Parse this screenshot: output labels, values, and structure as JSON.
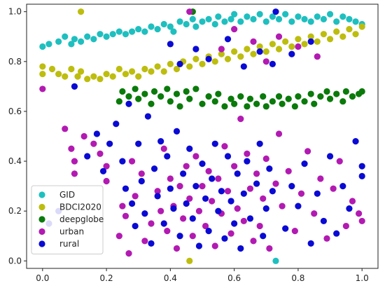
{
  "chart_data": {
    "type": "scatter",
    "title": "",
    "xlabel": "",
    "ylabel": "",
    "xlim": [
      -0.05,
      1.05
    ],
    "ylim": [
      -0.03,
      1.03
    ],
    "xticks": [
      "0.0",
      "0.2",
      "0.4",
      "0.6",
      "0.8",
      "1.0"
    ],
    "xtick_values": [
      0.0,
      0.2,
      0.4,
      0.6,
      0.8,
      1.0
    ],
    "yticks": [
      "0.0",
      "0.2",
      "0.4",
      "0.6",
      "0.8",
      "1.0"
    ],
    "ytick_values": [
      0.0,
      0.2,
      0.4,
      0.6,
      0.8,
      1.0
    ],
    "grid": false,
    "legend_position": "bottom-left",
    "series": [
      {
        "name": "GID",
        "color": "#1fbfbf",
        "points": [
          [
            0.0,
            0.86
          ],
          [
            0.02,
            0.87
          ],
          [
            0.05,
            0.88
          ],
          [
            0.07,
            0.9
          ],
          [
            0.09,
            0.87
          ],
          [
            0.1,
            0.89
          ],
          [
            0.12,
            0.88
          ],
          [
            0.14,
            0.9
          ],
          [
            0.16,
            0.89
          ],
          [
            0.18,
            0.91
          ],
          [
            0.2,
            0.9
          ],
          [
            0.22,
            0.91
          ],
          [
            0.24,
            0.92
          ],
          [
            0.26,
            0.91
          ],
          [
            0.28,
            0.92
          ],
          [
            0.3,
            0.93
          ],
          [
            0.32,
            0.92
          ],
          [
            0.34,
            0.94
          ],
          [
            0.36,
            0.93
          ],
          [
            0.38,
            0.95
          ],
          [
            0.4,
            0.94
          ],
          [
            0.41,
            0.92
          ],
          [
            0.43,
            0.96
          ],
          [
            0.45,
            0.95
          ],
          [
            0.47,
            0.97
          ],
          [
            0.48,
            0.94
          ],
          [
            0.5,
            0.96
          ],
          [
            0.52,
            0.97
          ],
          [
            0.54,
            0.95
          ],
          [
            0.55,
            0.98
          ],
          [
            0.57,
            0.96
          ],
          [
            0.59,
            0.97
          ],
          [
            0.6,
            0.99
          ],
          [
            0.62,
            0.96
          ],
          [
            0.64,
            0.98
          ],
          [
            0.66,
            0.97
          ],
          [
            0.68,
            0.99
          ],
          [
            0.7,
            0.96
          ],
          [
            0.72,
            0.98
          ],
          [
            0.74,
            0.97
          ],
          [
            0.76,
            0.99
          ],
          [
            0.78,
            0.96
          ],
          [
            0.8,
            0.98
          ],
          [
            0.82,
            0.97
          ],
          [
            0.84,
            0.96
          ],
          [
            0.86,
            0.98
          ],
          [
            0.88,
            0.97
          ],
          [
            0.9,
            0.99
          ],
          [
            0.92,
            0.96
          ],
          [
            0.94,
            0.98
          ],
          [
            0.96,
            0.97
          ],
          [
            0.98,
            0.96
          ],
          [
            1.0,
            0.95
          ],
          [
            0.73,
            0.0
          ]
        ]
      },
      {
        "name": "BDCI2020",
        "color": "#bdbd0f",
        "points": [
          [
            0.0,
            0.78
          ],
          [
            0.0,
            0.75
          ],
          [
            0.03,
            0.77
          ],
          [
            0.05,
            0.75
          ],
          [
            0.07,
            0.74
          ],
          [
            0.09,
            0.77
          ],
          [
            0.11,
            0.74
          ],
          [
            0.12,
            0.76
          ],
          [
            0.14,
            0.73
          ],
          [
            0.16,
            0.74
          ],
          [
            0.18,
            0.73
          ],
          [
            0.2,
            0.75
          ],
          [
            0.22,
            0.74
          ],
          [
            0.24,
            0.77
          ],
          [
            0.26,
            0.75
          ],
          [
            0.28,
            0.76
          ],
          [
            0.3,
            0.74
          ],
          [
            0.32,
            0.77
          ],
          [
            0.34,
            0.76
          ],
          [
            0.36,
            0.78
          ],
          [
            0.38,
            0.76
          ],
          [
            0.4,
            0.79
          ],
          [
            0.42,
            0.77
          ],
          [
            0.44,
            0.8
          ],
          [
            0.46,
            0.78
          ],
          [
            0.48,
            0.81
          ],
          [
            0.5,
            0.79
          ],
          [
            0.52,
            0.82
          ],
          [
            0.54,
            0.8
          ],
          [
            0.56,
            0.83
          ],
          [
            0.58,
            0.81
          ],
          [
            0.6,
            0.84
          ],
          [
            0.62,
            0.82
          ],
          [
            0.64,
            0.85
          ],
          [
            0.66,
            0.83
          ],
          [
            0.68,
            0.86
          ],
          [
            0.7,
            0.84
          ],
          [
            0.72,
            0.87
          ],
          [
            0.74,
            0.85
          ],
          [
            0.76,
            0.88
          ],
          [
            0.78,
            0.86
          ],
          [
            0.8,
            0.89
          ],
          [
            0.82,
            0.87
          ],
          [
            0.84,
            0.9
          ],
          [
            0.86,
            0.88
          ],
          [
            0.88,
            0.91
          ],
          [
            0.9,
            0.89
          ],
          [
            0.92,
            0.92
          ],
          [
            0.94,
            0.9
          ],
          [
            0.96,
            0.93
          ],
          [
            0.98,
            0.91
          ],
          [
            1.0,
            0.94
          ],
          [
            0.12,
            1.0
          ],
          [
            0.46,
            0.0
          ]
        ]
      },
      {
        "name": "deepglobe",
        "color": "#0a7a0a",
        "points": [
          [
            0.24,
            0.64
          ],
          [
            0.25,
            0.68
          ],
          [
            0.27,
            0.66
          ],
          [
            0.29,
            0.69
          ],
          [
            0.3,
            0.65
          ],
          [
            0.32,
            0.67
          ],
          [
            0.34,
            0.63
          ],
          [
            0.35,
            0.68
          ],
          [
            0.37,
            0.66
          ],
          [
            0.39,
            0.69
          ],
          [
            0.4,
            0.64
          ],
          [
            0.42,
            0.67
          ],
          [
            0.43,
            0.62
          ],
          [
            0.45,
            0.68
          ],
          [
            0.46,
            0.65
          ],
          [
            0.48,
            0.69
          ],
          [
            0.5,
            0.63
          ],
          [
            0.52,
            0.66
          ],
          [
            0.54,
            0.64
          ],
          [
            0.55,
            0.67
          ],
          [
            0.57,
            0.62
          ],
          [
            0.59,
            0.65
          ],
          [
            0.6,
            0.63
          ],
          [
            0.62,
            0.66
          ],
          [
            0.64,
            0.62
          ],
          [
            0.65,
            0.65
          ],
          [
            0.67,
            0.63
          ],
          [
            0.69,
            0.66
          ],
          [
            0.7,
            0.62
          ],
          [
            0.72,
            0.64
          ],
          [
            0.74,
            0.66
          ],
          [
            0.75,
            0.63
          ],
          [
            0.77,
            0.65
          ],
          [
            0.79,
            0.62
          ],
          [
            0.8,
            0.66
          ],
          [
            0.82,
            0.64
          ],
          [
            0.84,
            0.67
          ],
          [
            0.85,
            0.63
          ],
          [
            0.87,
            0.66
          ],
          [
            0.89,
            0.68
          ],
          [
            0.9,
            0.65
          ],
          [
            0.92,
            0.67
          ],
          [
            0.94,
            0.64
          ],
          [
            0.95,
            0.68
          ],
          [
            0.97,
            0.66
          ],
          [
            0.99,
            0.67
          ],
          [
            1.0,
            0.68
          ],
          [
            0.47,
            1.0
          ]
        ]
      },
      {
        "name": "urban",
        "color": "#b21ab2",
        "points": [
          [
            0.0,
            0.69
          ],
          [
            0.07,
            0.53
          ],
          [
            0.09,
            0.45
          ],
          [
            0.1,
            0.4
          ],
          [
            0.1,
            0.35
          ],
          [
            0.13,
            0.5
          ],
          [
            0.16,
            0.47
          ],
          [
            0.18,
            0.43
          ],
          [
            0.2,
            0.38
          ],
          [
            0.2,
            0.32
          ],
          [
            0.24,
            0.1
          ],
          [
            0.25,
            0.22
          ],
          [
            0.26,
            0.18
          ],
          [
            0.27,
            0.03
          ],
          [
            0.28,
            0.4
          ],
          [
            0.29,
            0.26
          ],
          [
            0.31,
            0.35
          ],
          [
            0.32,
            0.08
          ],
          [
            0.34,
            0.15
          ],
          [
            0.36,
            0.28
          ],
          [
            0.37,
            0.2
          ],
          [
            0.38,
            0.45
          ],
          [
            0.39,
            0.12
          ],
          [
            0.4,
            0.33
          ],
          [
            0.41,
            0.22
          ],
          [
            0.42,
            0.05
          ],
          [
            0.43,
            0.3
          ],
          [
            0.44,
            0.17
          ],
          [
            0.45,
            0.38
          ],
          [
            0.46,
            0.25
          ],
          [
            0.46,
            1.0
          ],
          [
            0.47,
            0.1
          ],
          [
            0.48,
            0.42
          ],
          [
            0.49,
            0.2
          ],
          [
            0.5,
            0.3
          ],
          [
            0.51,
            0.14
          ],
          [
            0.52,
            0.36
          ],
          [
            0.53,
            0.24
          ],
          [
            0.54,
            0.06
          ],
          [
            0.55,
            0.33
          ],
          [
            0.56,
            0.19
          ],
          [
            0.57,
            0.46
          ],
          [
            0.58,
            0.28
          ],
          [
            0.59,
            0.11
          ],
          [
            0.6,
            0.38
          ],
          [
            0.61,
            0.21
          ],
          [
            0.62,
            0.57
          ],
          [
            0.63,
            0.16
          ],
          [
            0.64,
            0.43
          ],
          [
            0.65,
            0.29
          ],
          [
            0.66,
            0.08
          ],
          [
            0.67,
            0.35
          ],
          [
            0.68,
            0.14
          ],
          [
            0.69,
            0.25
          ],
          [
            0.7,
            0.41
          ],
          [
            0.71,
            0.05
          ],
          [
            0.73,
            0.31
          ],
          [
            0.74,
            0.51
          ],
          [
            0.75,
            0.22
          ],
          [
            0.77,
            0.36
          ],
          [
            0.79,
            0.12
          ],
          [
            0.81,
            0.27
          ],
          [
            0.83,
            0.44
          ],
          [
            0.85,
            0.19
          ],
          [
            0.87,
            0.33
          ],
          [
            0.89,
            0.09
          ],
          [
            0.91,
            0.29
          ],
          [
            0.93,
            0.4
          ],
          [
            0.95,
            0.14
          ],
          [
            0.97,
            0.24
          ],
          [
            0.99,
            0.19
          ],
          [
            1.0,
            0.16
          ],
          [
            0.56,
            0.85
          ],
          [
            0.6,
            0.93
          ],
          [
            0.66,
            0.88
          ],
          [
            0.7,
            0.8
          ],
          [
            0.74,
            0.9
          ],
          [
            0.8,
            0.86
          ],
          [
            0.86,
            0.82
          ]
        ]
      },
      {
        "name": "rural",
        "color": "#0a0ad4",
        "points": [
          [
            0.02,
            0.15
          ],
          [
            0.05,
            0.2
          ],
          [
            0.1,
            0.7
          ],
          [
            0.14,
            0.42
          ],
          [
            0.17,
            0.51
          ],
          [
            0.19,
            0.36
          ],
          [
            0.21,
            0.47
          ],
          [
            0.23,
            0.55
          ],
          [
            0.25,
            0.4
          ],
          [
            0.26,
            0.29
          ],
          [
            0.27,
            0.63
          ],
          [
            0.28,
            0.23
          ],
          [
            0.29,
            0.14
          ],
          [
            0.3,
            0.47
          ],
          [
            0.31,
            0.32
          ],
          [
            0.32,
            0.19
          ],
          [
            0.33,
            0.58
          ],
          [
            0.34,
            0.07
          ],
          [
            0.35,
            0.37
          ],
          [
            0.36,
            0.26
          ],
          [
            0.37,
            0.48
          ],
          [
            0.38,
            0.15
          ],
          [
            0.39,
            0.42
          ],
          [
            0.4,
            0.29
          ],
          [
            0.4,
            0.87
          ],
          [
            0.41,
            0.21
          ],
          [
            0.42,
            0.52
          ],
          [
            0.43,
            0.1
          ],
          [
            0.44,
            0.35
          ],
          [
            0.45,
            0.23
          ],
          [
            0.46,
            0.45
          ],
          [
            0.47,
            0.17
          ],
          [
            0.48,
            0.3
          ],
          [
            0.49,
            0.06
          ],
          [
            0.5,
            0.39
          ],
          [
            0.51,
            0.25
          ],
          [
            0.52,
            0.12
          ],
          [
            0.53,
            0.33
          ],
          [
            0.54,
            0.47
          ],
          [
            0.55,
            0.2
          ],
          [
            0.56,
            0.28
          ],
          [
            0.57,
            0.09
          ],
          [
            0.58,
            0.42
          ],
          [
            0.59,
            0.24
          ],
          [
            0.6,
            0.15
          ],
          [
            0.61,
            0.35
          ],
          [
            0.62,
            0.05
          ],
          [
            0.63,
            0.27
          ],
          [
            0.64,
            0.4
          ],
          [
            0.65,
            0.17
          ],
          [
            0.67,
            0.31
          ],
          [
            0.68,
            0.47
          ],
          [
            0.69,
            0.1
          ],
          [
            0.7,
            0.21
          ],
          [
            0.71,
            0.37
          ],
          [
            0.72,
            0.28
          ],
          [
            0.73,
            1.0
          ],
          [
            0.76,
            0.13
          ],
          [
            0.78,
            0.3
          ],
          [
            0.8,
            0.22
          ],
          [
            0.82,
            0.39
          ],
          [
            0.84,
            0.07
          ],
          [
            0.86,
            0.27
          ],
          [
            0.88,
            0.16
          ],
          [
            0.9,
            0.42
          ],
          [
            0.92,
            0.11
          ],
          [
            0.94,
            0.3
          ],
          [
            0.96,
            0.21
          ],
          [
            0.98,
            0.48
          ],
          [
            1.0,
            0.38
          ],
          [
            1.0,
            0.34
          ],
          [
            0.43,
            0.79
          ],
          [
            0.48,
            0.85
          ],
          [
            0.52,
            0.81
          ],
          [
            0.58,
            0.89
          ],
          [
            0.63,
            0.78
          ],
          [
            0.68,
            0.84
          ],
          [
            0.72,
            0.79
          ],
          [
            0.78,
            0.83
          ],
          [
            0.84,
            0.88
          ]
        ]
      }
    ]
  }
}
